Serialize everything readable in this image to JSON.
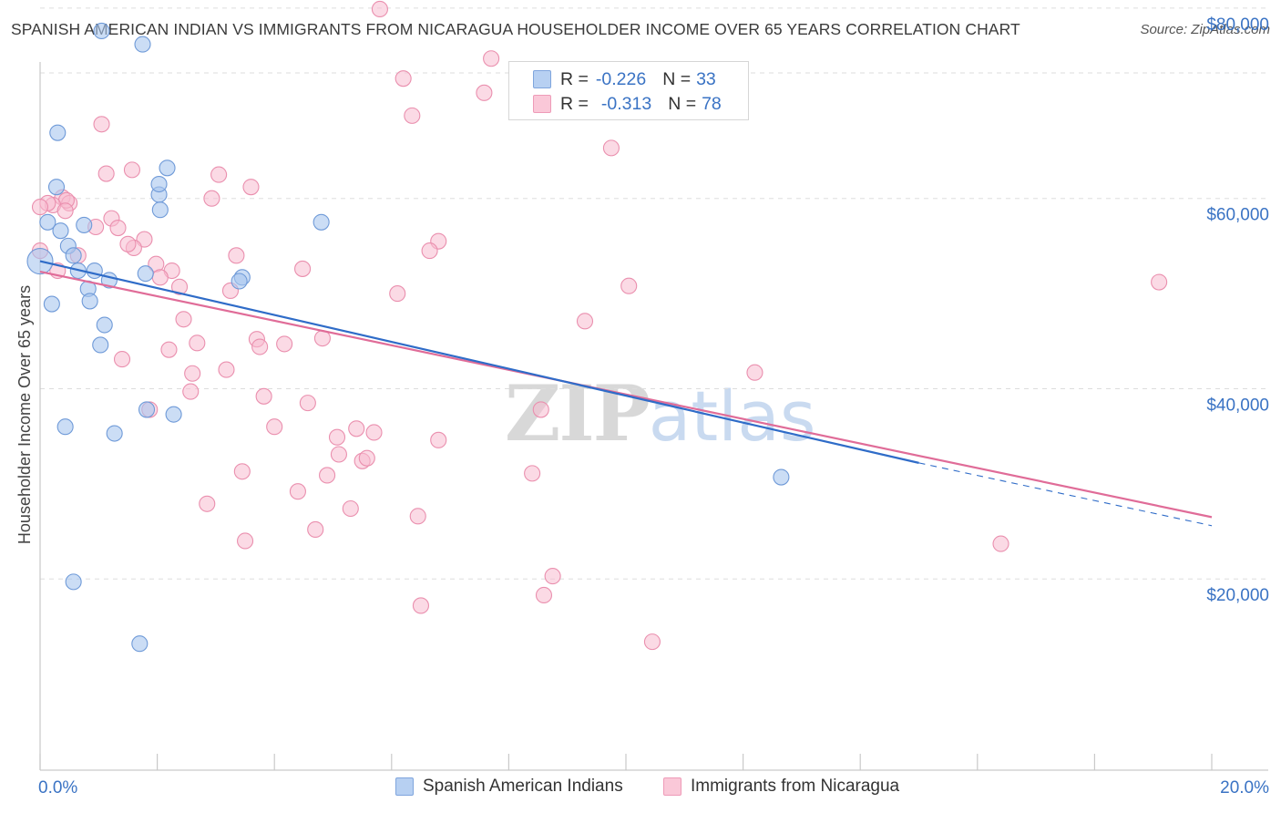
{
  "title": "SPANISH AMERICAN INDIAN VS IMMIGRANTS FROM NICARAGUA HOUSEHOLDER INCOME OVER 65 YEARS CORRELATION CHART",
  "source": "Source: ZipAtlas.com",
  "watermark": {
    "zip": "ZIP",
    "atlas": "atlas"
  },
  "legend": {
    "rows": [
      {
        "r_label": "R =",
        "r_value": "-0.226",
        "n_label": "N =",
        "n_value": "33"
      },
      {
        "r_label": "R =",
        "r_value": "-0.313",
        "n_label": "N =",
        "n_value": "78"
      }
    ]
  },
  "bottom_legend": {
    "series1": "Spanish American Indians",
    "series2": "Immigrants from Nicaragua"
  },
  "colors": {
    "series1_fill": "#a9c6ee",
    "series1_stroke": "#6f9ad8",
    "series1_line": "#2f6cc8",
    "series2_fill": "#f8bcd0",
    "series2_stroke": "#ea8fae",
    "series2_line": "#e06c98",
    "tick_text": "#3a73c4",
    "grid": "#dddddd"
  },
  "chart_data": {
    "type": "scatter",
    "title": "SPANISH AMERICAN INDIAN VS IMMIGRANTS FROM NICARAGUA HOUSEHOLDER INCOME OVER 65 YEARS CORRELATION CHART",
    "xlabel": "",
    "ylabel": "Householder Income Over 65 years",
    "xlim": [
      0,
      20
    ],
    "ylim": [
      0,
      82000
    ],
    "x_unit": "%",
    "x_tick_labels": [
      "0.0%",
      "20.0%"
    ],
    "y_ticks": [
      20000,
      40000,
      60000,
      80000
    ],
    "y_tick_labels": [
      "$20,000",
      "$40,000",
      "$60,000",
      "$80,000"
    ],
    "grid": true,
    "legend_position": "top-center",
    "series": [
      {
        "name": "Spanish American Indians",
        "r": -0.226,
        "n": 33,
        "trend": {
          "x": [
            0,
            15.0
          ],
          "y": [
            53400,
            32200
          ],
          "dashed_to": [
            20,
            25600
          ]
        },
        "points": [
          [
            1.05,
            77600
          ],
          [
            1.75,
            76200
          ],
          [
            0.3,
            66900
          ],
          [
            2.17,
            63200
          ],
          [
            0.28,
            61200
          ],
          [
            2.03,
            60400
          ],
          [
            2.03,
            61500
          ],
          [
            2.05,
            58800
          ],
          [
            4.8,
            57500
          ],
          [
            0.75,
            57200
          ],
          [
            0.13,
            57500
          ],
          [
            0.35,
            56600
          ],
          [
            0.48,
            55000
          ],
          [
            0.57,
            54000
          ],
          [
            0.65,
            52400
          ],
          [
            0.93,
            52400
          ],
          [
            1.8,
            52100
          ],
          [
            1.18,
            51400
          ],
          [
            3.45,
            51700
          ],
          [
            3.4,
            51300
          ],
          [
            0.82,
            50500
          ],
          [
            0.2,
            48900
          ],
          [
            0.85,
            49200
          ],
          [
            1.1,
            46700
          ],
          [
            1.03,
            44600
          ],
          [
            1.82,
            37800
          ],
          [
            2.28,
            37300
          ],
          [
            0.43,
            36000
          ],
          [
            1.27,
            35300
          ],
          [
            12.65,
            30700
          ],
          [
            0.57,
            19700
          ],
          [
            1.7,
            13200
          ],
          [
            0.0,
            53400
          ]
        ]
      },
      {
        "name": "Immigrants from Nicaragua",
        "r": -0.313,
        "n": 78,
        "trend": {
          "x": [
            0,
            20
          ],
          "y": [
            52300,
            26500
          ]
        },
        "points": [
          [
            5.8,
            79900
          ],
          [
            7.7,
            74700
          ],
          [
            6.2,
            72600
          ],
          [
            7.58,
            71100
          ],
          [
            6.35,
            68700
          ],
          [
            1.05,
            67800
          ],
          [
            9.75,
            65300
          ],
          [
            1.57,
            63000
          ],
          [
            1.13,
            62600
          ],
          [
            3.05,
            62500
          ],
          [
            3.6,
            61200
          ],
          [
            0.38,
            60100
          ],
          [
            0.5,
            59500
          ],
          [
            0.45,
            59800
          ],
          [
            0.22,
            59300
          ],
          [
            0.13,
            59500
          ],
          [
            2.93,
            60000
          ],
          [
            0.43,
            58700
          ],
          [
            0.0,
            59100
          ],
          [
            1.22,
            57900
          ],
          [
            0.95,
            57000
          ],
          [
            1.33,
            56900
          ],
          [
            1.78,
            55700
          ],
          [
            6.8,
            55500
          ],
          [
            1.6,
            54800
          ],
          [
            1.5,
            55200
          ],
          [
            0.65,
            54000
          ],
          [
            3.35,
            54000
          ],
          [
            6.65,
            54500
          ],
          [
            0.0,
            54500
          ],
          [
            1.98,
            53100
          ],
          [
            4.48,
            52600
          ],
          [
            2.25,
            52400
          ],
          [
            2.05,
            51700
          ],
          [
            2.38,
            50700
          ],
          [
            3.25,
            50300
          ],
          [
            6.1,
            50000
          ],
          [
            10.05,
            50800
          ],
          [
            19.1,
            51200
          ],
          [
            0.3,
            52400
          ],
          [
            2.45,
            47300
          ],
          [
            9.3,
            47100
          ],
          [
            3.7,
            45200
          ],
          [
            4.82,
            45300
          ],
          [
            2.68,
            44800
          ],
          [
            4.17,
            44700
          ],
          [
            3.75,
            44400
          ],
          [
            2.2,
            44100
          ],
          [
            1.4,
            43100
          ],
          [
            3.18,
            42000
          ],
          [
            2.6,
            41600
          ],
          [
            12.2,
            41700
          ],
          [
            2.57,
            39700
          ],
          [
            3.82,
            39200
          ],
          [
            1.87,
            37800
          ],
          [
            4.57,
            38500
          ],
          [
            8.55,
            37800
          ],
          [
            4.0,
            36000
          ],
          [
            5.4,
            35800
          ],
          [
            5.7,
            35400
          ],
          [
            5.07,
            34900
          ],
          [
            6.8,
            34600
          ],
          [
            5.1,
            33100
          ],
          [
            5.5,
            32400
          ],
          [
            5.58,
            32700
          ],
          [
            3.45,
            31300
          ],
          [
            4.9,
            30900
          ],
          [
            8.4,
            31100
          ],
          [
            4.4,
            29200
          ],
          [
            2.85,
            27900
          ],
          [
            5.3,
            27400
          ],
          [
            6.45,
            26600
          ],
          [
            4.7,
            25200
          ],
          [
            3.5,
            24000
          ],
          [
            16.4,
            23700
          ],
          [
            8.75,
            20300
          ],
          [
            8.6,
            18300
          ],
          [
            6.5,
            17200
          ],
          [
            10.45,
            13400
          ]
        ]
      }
    ]
  }
}
